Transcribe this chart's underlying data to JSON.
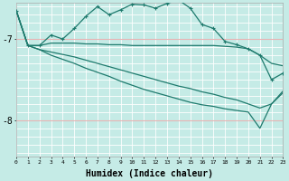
{
  "xlabel": "Humidex (Indice chaleur)",
  "bg_color": "#c5ebe6",
  "line_color": "#1e7a6d",
  "grid_white": "#ffffff",
  "grid_pink": "#e8b4b4",
  "xmin": 0,
  "xmax": 23,
  "ymin": -8.45,
  "ymax": -6.55,
  "yticks": [
    -8,
    -7
  ],
  "series": [
    {
      "x": [
        0,
        1,
        2,
        3,
        4,
        5,
        6,
        7,
        8,
        9,
        10,
        11,
        12,
        13,
        14,
        15,
        16,
        17,
        18,
        19,
        20,
        21,
        22,
        23
      ],
      "y": [
        -6.65,
        -7.08,
        -7.08,
        -7.05,
        -7.05,
        -7.05,
        -7.06,
        -7.06,
        -7.07,
        -7.07,
        -7.08,
        -7.08,
        -7.08,
        -7.08,
        -7.08,
        -7.08,
        -7.08,
        -7.08,
        -7.09,
        -7.1,
        -7.12,
        -7.2,
        -7.3,
        -7.33
      ],
      "marker": false,
      "lw": 0.9
    },
    {
      "x": [
        0,
        1,
        2,
        3,
        4,
        5,
        6,
        7,
        8,
        9,
        10,
        11,
        12,
        13,
        14,
        15,
        16,
        17,
        18,
        19,
        20,
        21,
        22,
        23
      ],
      "y": [
        -6.65,
        -7.08,
        -7.13,
        -7.16,
        -7.19,
        -7.22,
        -7.26,
        -7.3,
        -7.34,
        -7.38,
        -7.42,
        -7.46,
        -7.5,
        -7.54,
        -7.58,
        -7.61,
        -7.65,
        -7.68,
        -7.72,
        -7.75,
        -7.8,
        -7.85,
        -7.8,
        -7.66
      ],
      "marker": false,
      "lw": 0.9
    },
    {
      "x": [
        0,
        1,
        2,
        3,
        4,
        5,
        6,
        7,
        8,
        9,
        10,
        11,
        12,
        13,
        14,
        15,
        16,
        17,
        18,
        19,
        20,
        21,
        22,
        23
      ],
      "y": [
        -6.65,
        -7.08,
        -7.13,
        -7.2,
        -7.25,
        -7.3,
        -7.36,
        -7.41,
        -7.46,
        -7.52,
        -7.57,
        -7.62,
        -7.66,
        -7.7,
        -7.74,
        -7.78,
        -7.81,
        -7.83,
        -7.86,
        -7.88,
        -7.9,
        -8.1,
        -7.8,
        -7.64
      ],
      "marker": false,
      "lw": 0.9
    },
    {
      "x": [
        0,
        1,
        2,
        3,
        4,
        5,
        6,
        7,
        8,
        9,
        10,
        11,
        12,
        13,
        14,
        15,
        16,
        17,
        18,
        19,
        20,
        21,
        22,
        23
      ],
      "y": [
        -6.65,
        -7.08,
        -7.08,
        -6.95,
        -7.0,
        -6.87,
        -6.72,
        -6.6,
        -6.7,
        -6.64,
        -6.57,
        -6.58,
        -6.62,
        -6.56,
        -6.52,
        -6.62,
        -6.82,
        -6.87,
        -7.03,
        -7.07,
        -7.12,
        -7.2,
        -7.5,
        -7.42
      ],
      "marker": true,
      "lw": 0.9
    }
  ]
}
